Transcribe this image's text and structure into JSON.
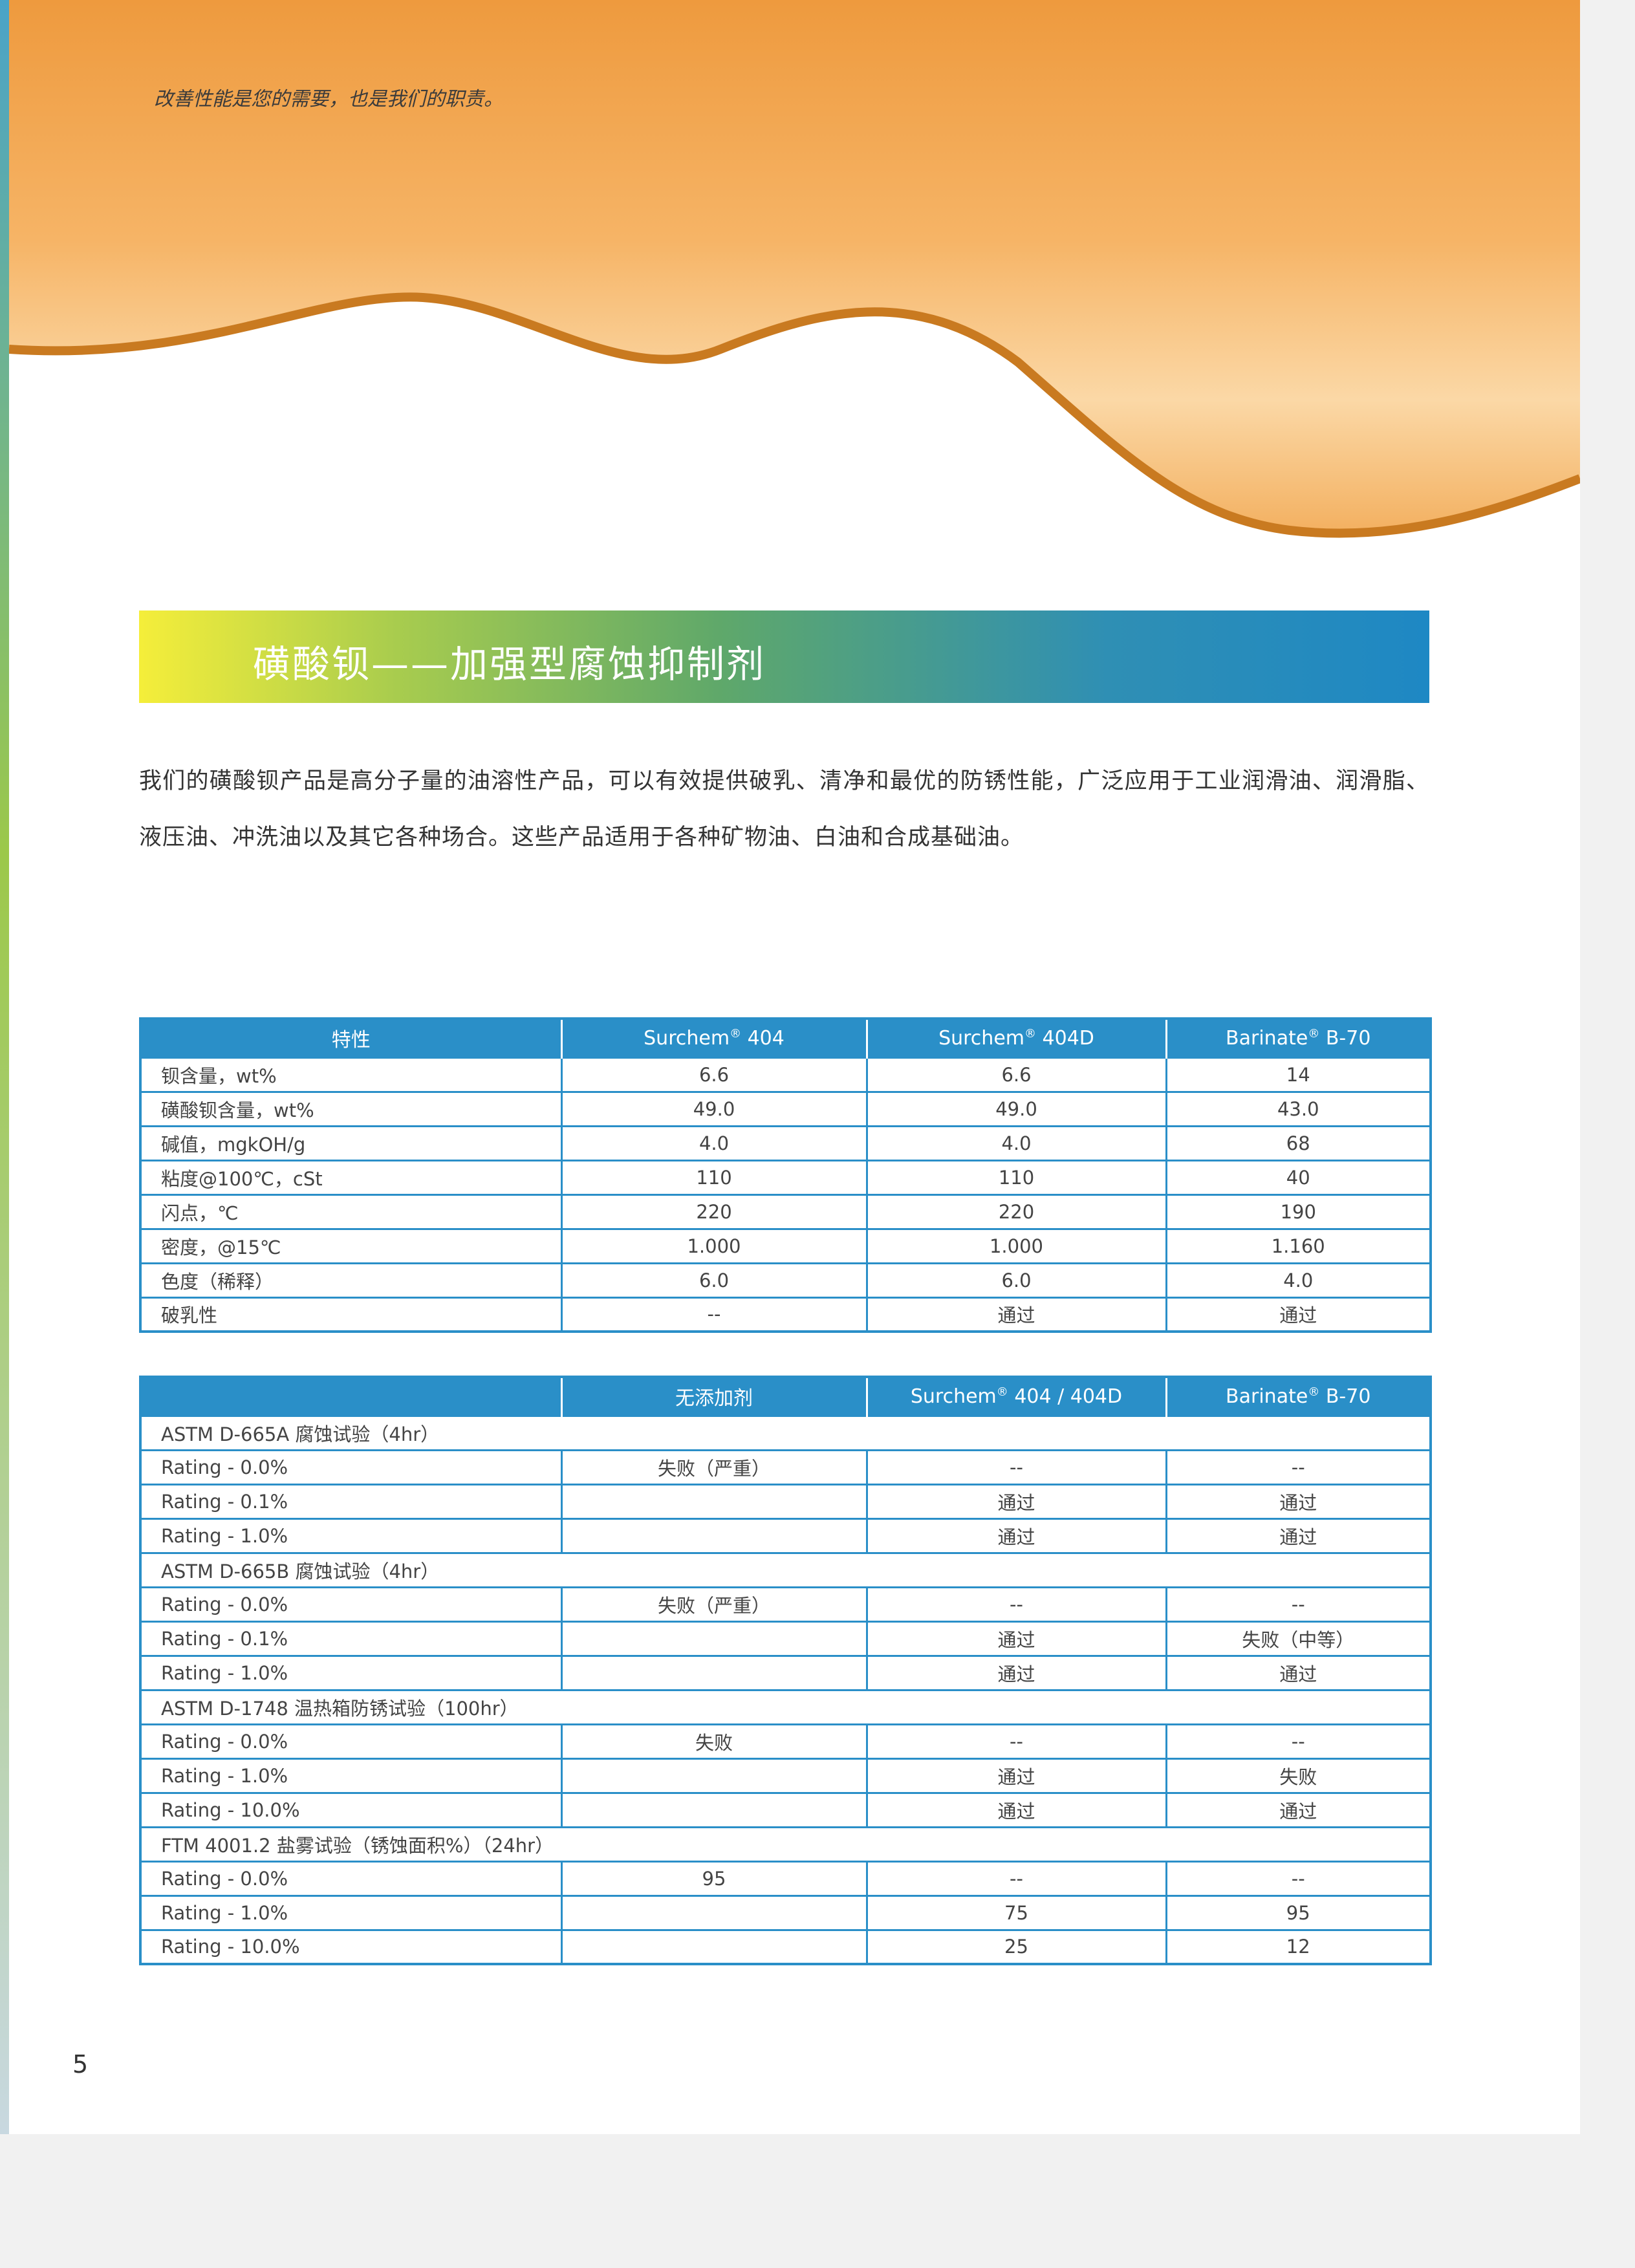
{
  "header": {
    "tagline": "改善性能是您的需要，也是我们的职责。"
  },
  "banner": {
    "title": "磺酸钡——加强型腐蚀抑制剂"
  },
  "intro": "我们的磺酸钡产品是高分子量的油溶性产品，可以有效提供破乳、清净和最优的防锈性能，广泛应用于工业润滑油、润滑脂、液压油、冲洗油以及其它各种场合。这些产品适用于各种矿物油、白油和合成基础油。",
  "colors": {
    "header": "#2a8fc8",
    "hero": "#f0a040"
  },
  "table1": {
    "headers": [
      "特性",
      "Surchem® 404",
      "Surchem® 404D",
      "Barinate® B-70"
    ],
    "rows": [
      [
        "钡含量，wt%",
        "6.6",
        "6.6",
        "14"
      ],
      [
        "磺酸钡含量，wt%",
        "49.0",
        "49.0",
        "43.0"
      ],
      [
        "碱值，mgkOH/g",
        "4.0",
        "4.0",
        "68"
      ],
      [
        "粘度@100℃，cSt",
        "110",
        "110",
        "40"
      ],
      [
        "闪点，℃",
        "220",
        "220",
        "190"
      ],
      [
        "密度，@15℃",
        "1.000",
        "1.000",
        "1.160"
      ],
      [
        "色度（稀释）",
        "6.0",
        "6.0",
        "4.0"
      ],
      [
        "破乳性",
        "--",
        "通过",
        "通过"
      ]
    ]
  },
  "table2": {
    "headers": [
      "",
      "无添加剂",
      "Surchem® 404 / 404D",
      "Barinate® B-70"
    ],
    "rows": [
      [
        "ASTM D-665A 腐蚀试验（4hr）"
      ],
      [
        "Rating - 0.0%",
        "失败（严重）",
        "--",
        "--"
      ],
      [
        "Rating - 0.1%",
        "",
        "通过",
        "通过"
      ],
      [
        "Rating - 1.0%",
        "",
        "通过",
        "通过"
      ],
      [
        "ASTM D-665B 腐蚀试验（4hr）"
      ],
      [
        "Rating - 0.0%",
        "失败（严重）",
        "--",
        "--"
      ],
      [
        "Rating - 0.1%",
        "",
        "通过",
        "失败（中等）"
      ],
      [
        "Rating - 1.0%",
        "",
        "通过",
        "通过"
      ],
      [
        "ASTM D-1748 温热箱防锈试验（100hr）"
      ],
      [
        "Rating - 0.0%",
        "失败",
        "--",
        "--"
      ],
      [
        "Rating - 1.0%",
        "",
        "通过",
        "失败"
      ],
      [
        "Rating - 10.0%",
        "",
        "通过",
        "通过"
      ],
      [
        "FTM 4001.2 盐雾试验（锈蚀面积%）（24hr）"
      ],
      [
        "Rating - 0.0%",
        "95",
        "--",
        "--"
      ],
      [
        "Rating - 1.0%",
        "",
        "75",
        "95"
      ],
      [
        "Rating - 10.0%",
        "",
        "25",
        "12"
      ]
    ]
  },
  "page_number": "5"
}
